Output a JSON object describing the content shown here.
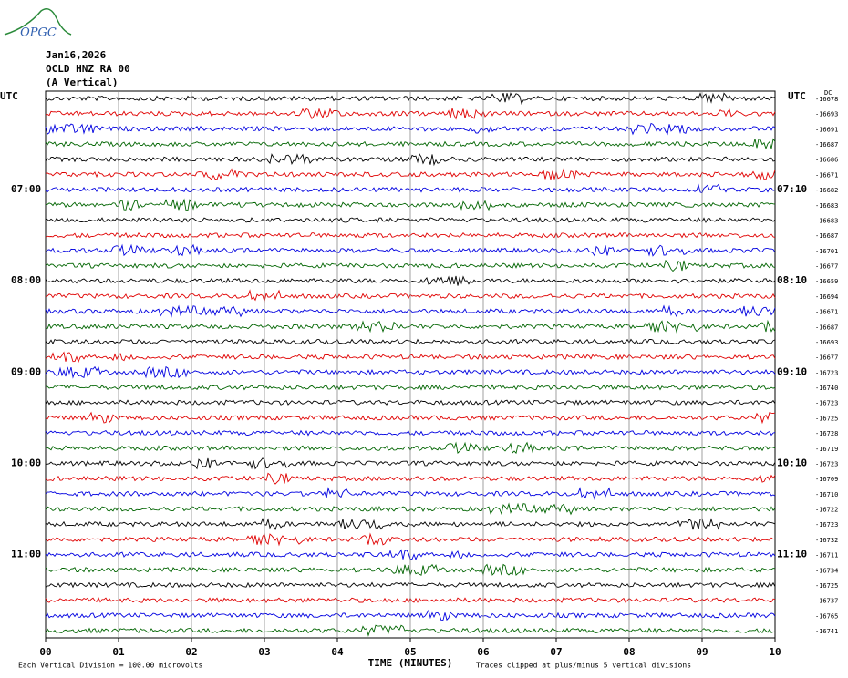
{
  "logo": "OPGC",
  "header": {
    "date": "Jan16,2026",
    "station": "OCLD HNZ RA 00",
    "component": "(A Vertical)"
  },
  "left_axis": {
    "title": "UTC",
    "hour_labels": [
      "07:00",
      "08:00",
      "09:00",
      "10:00",
      "11:00"
    ]
  },
  "right_axis": {
    "title": "UTC",
    "dc_title": "DC",
    "hour_labels": [
      "07:10",
      "08:10",
      "09:10",
      "10:10",
      "11:10"
    ],
    "dc_offsets": [
      "-16678",
      "-16693",
      "-16691",
      "-16687",
      "-16686",
      "-16671",
      "-16682",
      "-16683",
      "-16683",
      "-16687",
      "-16701",
      "-16677",
      "-16659",
      "-16694",
      "-16671",
      "-16687",
      "-16693",
      "-16677",
      "-16723",
      "-16740",
      "-16723",
      "-16725",
      "-16728",
      "-16719",
      "-16723",
      "-16709",
      "-16710",
      "-16722",
      "-16723",
      "-16732",
      "-16711",
      "-16734",
      "-16725",
      "-16737",
      "-16765",
      "-16741"
    ]
  },
  "trace_colors": [
    "#000000",
    "#e00000",
    "#0000e0",
    "#006400"
  ],
  "x_axis": {
    "tick_labels": [
      "00",
      "01",
      "02",
      "03",
      "04",
      "05",
      "06",
      "07",
      "08",
      "09",
      "10"
    ],
    "title": "TIME (MINUTES)"
  },
  "footer": {
    "scale_note": "Each Vertical Division =  100.00 microvolts",
    "clip_note": "Traces clipped at plus/minus 5 vertical divisions"
  }
}
